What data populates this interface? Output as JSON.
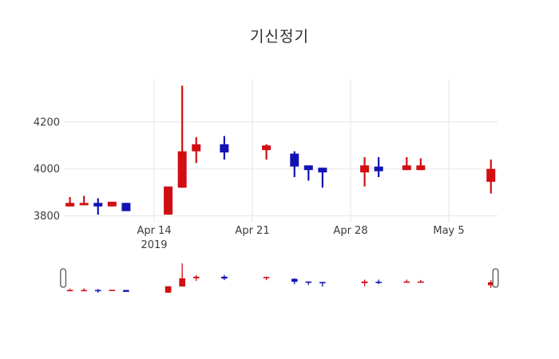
{
  "page": {
    "background": "#ffffff"
  },
  "chart_data": {
    "type": "candlestick",
    "title": "기신정기",
    "increasing_color": "#d10e12",
    "decreasing_color": "#1212b4",
    "grid_color": "#e9e9e9",
    "text_color": "#3b3b3b",
    "y_axis": {
      "ticks": [
        3800,
        4000,
        4200
      ],
      "range": [
        3760,
        4390
      ]
    },
    "x_axis": {
      "ticks": [
        {
          "label": "Apr 14",
          "sublabel": "2019",
          "date": "2019-04-14"
        },
        {
          "label": "Apr 21",
          "date": "2019-04-21"
        },
        {
          "label": "Apr 28",
          "date": "2019-04-28"
        },
        {
          "label": "May 5",
          "date": "2019-05-05"
        }
      ]
    },
    "rangeslider": {
      "visible": true,
      "selected_range": "full"
    },
    "candles": [
      {
        "date": "2019-04-08",
        "open": 3840,
        "high": 3880,
        "low": 3840,
        "close": 3855
      },
      {
        "date": "2019-04-09",
        "open": 3845,
        "high": 3885,
        "low": 3845,
        "close": 3855
      },
      {
        "date": "2019-04-10",
        "open": 3855,
        "high": 3875,
        "low": 3805,
        "close": 3840
      },
      {
        "date": "2019-04-11",
        "open": 3840,
        "high": 3860,
        "low": 3840,
        "close": 3860
      },
      {
        "date": "2019-04-12",
        "open": 3855,
        "high": 3855,
        "low": 3820,
        "close": 3820
      },
      {
        "date": "2019-04-15",
        "open": 3805,
        "high": 3925,
        "low": 3805,
        "close": 3925
      },
      {
        "date": "2019-04-16",
        "open": 3920,
        "high": 4355,
        "low": 3920,
        "close": 4075
      },
      {
        "date": "2019-04-17",
        "open": 4075,
        "high": 4135,
        "low": 4025,
        "close": 4105
      },
      {
        "date": "2019-04-19",
        "open": 4105,
        "high": 4140,
        "low": 4040,
        "close": 4070
      },
      {
        "date": "2019-04-22",
        "open": 4080,
        "high": 4105,
        "low": 4040,
        "close": 4100
      },
      {
        "date": "2019-04-24",
        "open": 4065,
        "high": 4075,
        "low": 3965,
        "close": 4010
      },
      {
        "date": "2019-04-25",
        "open": 4015,
        "high": 4015,
        "low": 3950,
        "close": 3995
      },
      {
        "date": "2019-04-26",
        "open": 4005,
        "high": 4005,
        "low": 3920,
        "close": 3985
      },
      {
        "date": "2019-04-29",
        "open": 3985,
        "high": 4050,
        "low": 3925,
        "close": 4015
      },
      {
        "date": "2019-04-30",
        "open": 4010,
        "high": 4050,
        "low": 3965,
        "close": 3990
      },
      {
        "date": "2019-05-02",
        "open": 3995,
        "high": 4050,
        "low": 3995,
        "close": 4015
      },
      {
        "date": "2019-05-03",
        "open": 3995,
        "high": 4045,
        "low": 3995,
        "close": 4015
      },
      {
        "date": "2019-05-08",
        "open": 3945,
        "high": 4040,
        "low": 3895,
        "close": 4000
      }
    ]
  }
}
